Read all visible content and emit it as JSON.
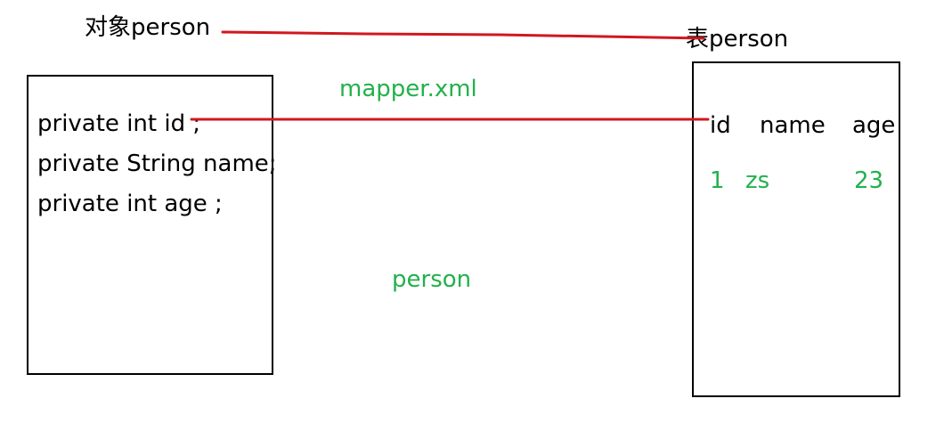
{
  "object": {
    "title": "对象person",
    "fields": [
      "private int id ;",
      "private String name;",
      "private int age ;"
    ]
  },
  "table": {
    "title": "表person",
    "columns": [
      "id",
      "name",
      "age"
    ],
    "rows": [
      [
        "1",
        "zs",
        "23"
      ]
    ]
  },
  "mapper_label": "mapper.xml",
  "mapping_label": "person",
  "colors": {
    "connector": "#d0181f",
    "green_text": "#22b14c",
    "black_text": "#000000"
  }
}
